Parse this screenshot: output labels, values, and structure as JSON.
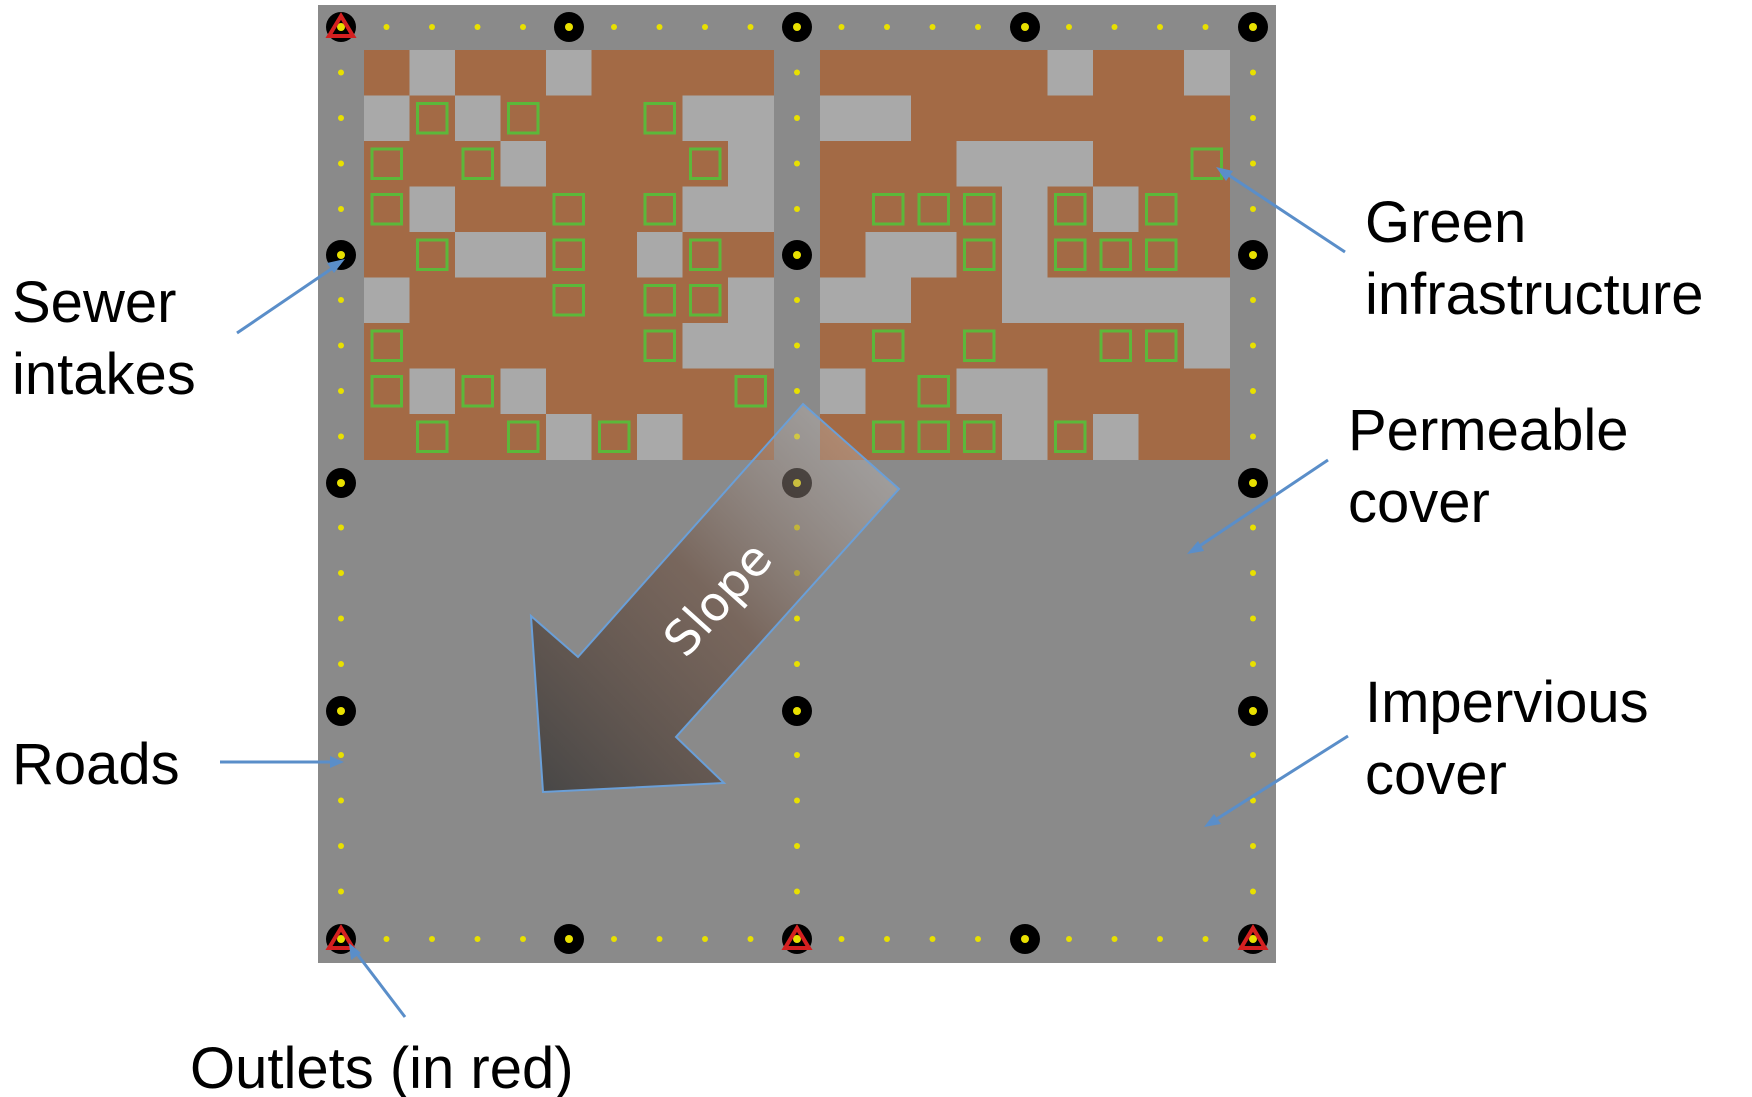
{
  "diagram": {
    "labels": {
      "sewer_line1": "Sewer",
      "sewer_line2": "intakes",
      "roads": "Roads",
      "outlets": "Outlets (in red)",
      "green_line1": "Green",
      "green_line2": "infrastructure",
      "permeable_line1": "Permeable",
      "permeable_line2": "cover",
      "impervious_line1": "Impervious",
      "impervious_line2": "cover",
      "slope": "Slope"
    },
    "colors": {
      "road": "#8a8a8a",
      "impervious": "#a9a9a9",
      "permeable": "#a36a45",
      "green_infrastructure": "#5cb83a",
      "road_dot": "#e8e000",
      "intake_ring": "#000000",
      "outlet": "#d42020",
      "leader_line": "#5a8ec9"
    },
    "legend_items": [
      {
        "name": "Sewer intakes",
        "icon": "sewer-intake-icon"
      },
      {
        "name": "Roads",
        "icon": "road-dot-icon"
      },
      {
        "name": "Outlets (in red)",
        "icon": "outlet-icon"
      },
      {
        "name": "Green infrastructure",
        "icon": "green-square-icon"
      },
      {
        "name": "Permeable cover",
        "icon": "permeable-cell-icon"
      },
      {
        "name": "Impervious cover",
        "icon": "impervious-cell-icon"
      }
    ],
    "grid": {
      "blocks": 2,
      "cells_per_block": 9,
      "left_block_pattern": [
        "PIPPIPPPP",
        "IGIGPPGII",
        "GPGIPPPGI",
        "GIPPGPGII",
        "PGIIGPIGP",
        "IPPPGPGGI",
        "GPPPPPGII",
        "GIGIPPPPG",
        "PGPGIGIPP"
      ],
      "right_block_pattern": [
        "PPPPPIPPI",
        "IIPPPPPPP",
        "PPPIIIPPG",
        "PGGGIGIGP",
        "PIIGIGGGP",
        "IIPPIIIII",
        "PGPGPPGGI",
        "IPGIIPPPP",
        "PGGGIGIPP"
      ]
    }
  }
}
